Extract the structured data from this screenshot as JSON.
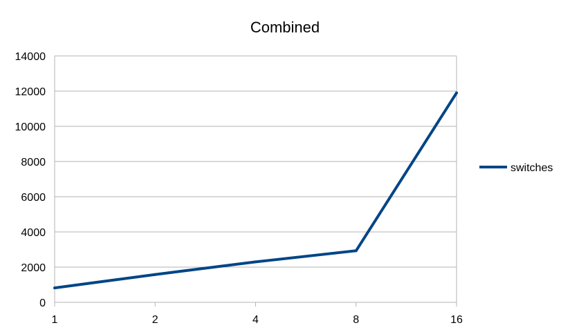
{
  "chart_data": {
    "type": "line",
    "title": "Combined",
    "xlabel": "",
    "ylabel": "",
    "categories": [
      "1",
      "2",
      "4",
      "8",
      "16"
    ],
    "series": [
      {
        "name": "switches",
        "values": [
          820,
          1580,
          2300,
          2930,
          11900
        ],
        "color": "#004586"
      }
    ],
    "ylim": [
      0,
      14000
    ],
    "yticks": [
      "0",
      "2000",
      "4000",
      "6000",
      "8000",
      "10000",
      "12000",
      "14000"
    ],
    "grid": true,
    "legend_position": "right"
  }
}
